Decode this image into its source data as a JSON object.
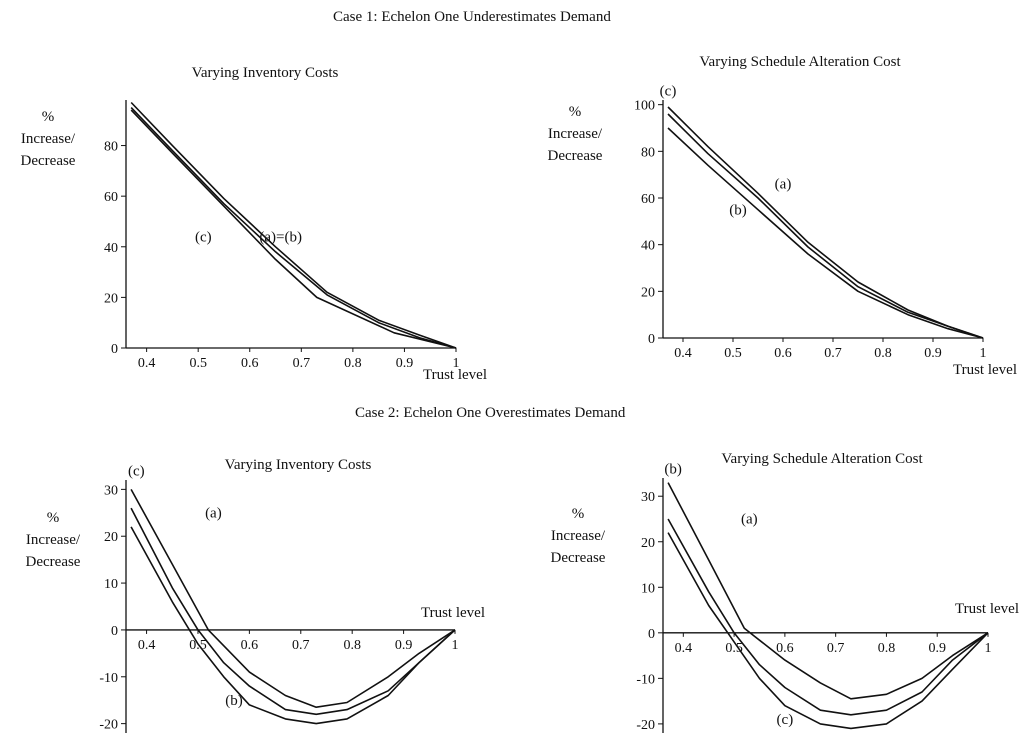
{
  "case1": {
    "title": "Case 1: Echelon One Underestimates Demand"
  },
  "case2": {
    "title": "Case 2: Echelon One Overestimates Demand"
  },
  "chart_data": [
    {
      "id": "c1l",
      "type": "line",
      "title": "Varying Inventory Costs",
      "ylabel": [
        "%",
        "Increase/",
        "Decrease"
      ],
      "xlabel": "Trust level",
      "xlim": [
        0.36,
        1.0
      ],
      "ylim": [
        0,
        98
      ],
      "x_ticks": [
        0.4,
        0.5,
        0.6,
        0.7,
        0.8,
        0.9,
        1
      ],
      "x_tick_labels": [
        "0.4",
        "0.5",
        "0.6",
        "0.7",
        "0.8",
        "0.9",
        "1"
      ],
      "y_ticks": [
        0,
        20,
        40,
        60,
        80
      ],
      "grid": false,
      "series": [
        {
          "label": "(a)=(b)",
          "x": [
            0.37,
            0.45,
            0.55,
            0.65,
            0.75,
            0.85,
            0.93,
            1.0
          ],
          "y": [
            97,
            80,
            59,
            40,
            22,
            11,
            5,
            0
          ]
        },
        {
          "label": "",
          "x": [
            0.37,
            0.45,
            0.55,
            0.65,
            0.75,
            0.85,
            0.93,
            1.0
          ],
          "y": [
            95,
            78,
            57,
            38,
            21,
            10,
            4,
            0
          ]
        },
        {
          "label": "(c)",
          "x": [
            0.37,
            0.45,
            0.55,
            0.65,
            0.73,
            0.88,
            1.0
          ],
          "y": [
            94,
            77,
            56,
            35,
            20,
            6,
            0
          ]
        }
      ],
      "annotations": [
        {
          "text": "(a)=(b)",
          "x": 0.66,
          "y": 42
        },
        {
          "text": "(c)",
          "x": 0.51,
          "y": 42
        }
      ]
    },
    {
      "id": "c1r",
      "type": "line",
      "title": "Varying Schedule Alteration Cost",
      "ylabel": [
        "%",
        "Increase/",
        "Decrease"
      ],
      "xlabel": "Trust level",
      "xlim": [
        0.36,
        1.0
      ],
      "ylim": [
        0,
        102
      ],
      "x_ticks": [
        0.4,
        0.5,
        0.6,
        0.7,
        0.8,
        0.9,
        1
      ],
      "x_tick_labels": [
        "0.4",
        "0.5",
        "0.6",
        "0.7",
        "0.8",
        "0.9",
        "1"
      ],
      "y_ticks": [
        0,
        20,
        40,
        60,
        80,
        100
      ],
      "grid": false,
      "series": [
        {
          "label": "(c)",
          "x": [
            0.37,
            0.45,
            0.55,
            0.65,
            0.75,
            0.85,
            0.93,
            1.0
          ],
          "y": [
            99,
            82,
            62,
            41,
            24,
            12,
            5,
            0
          ]
        },
        {
          "label": "(a)",
          "x": [
            0.37,
            0.45,
            0.55,
            0.65,
            0.75,
            0.85,
            0.93,
            1.0
          ],
          "y": [
            96,
            79,
            60,
            39,
            22,
            11,
            5,
            0
          ]
        },
        {
          "label": "(b)",
          "x": [
            0.37,
            0.45,
            0.55,
            0.65,
            0.75,
            0.85,
            0.93,
            1.0
          ],
          "y": [
            90,
            74,
            55,
            36,
            20,
            10,
            4,
            0
          ]
        }
      ],
      "annotations": [
        {
          "text": "(c)",
          "x": 0.37,
          "y": 104
        },
        {
          "text": "(a)",
          "x": 0.6,
          "y": 64
        },
        {
          "text": "(b)",
          "x": 0.51,
          "y": 53
        }
      ]
    },
    {
      "id": "c2l",
      "type": "line",
      "title": "Varying Inventory Costs",
      "ylabel": [
        "%",
        "Increase/",
        "Decrease"
      ],
      "xlabel": "Trust level",
      "xlim": [
        0.36,
        1.0
      ],
      "ylim": [
        -22,
        32
      ],
      "x_ticks": [
        0.4,
        0.5,
        0.6,
        0.7,
        0.8,
        0.9,
        1
      ],
      "x_tick_labels": [
        "0.4",
        "0.5",
        "0.6",
        "0.7",
        "0.8",
        "0.9",
        "1"
      ],
      "y_ticks": [
        -20,
        -10,
        0,
        10,
        20,
        30
      ],
      "grid": false,
      "series": [
        {
          "label": "(c)",
          "x": [
            0.37,
            0.45,
            0.52,
            0.6,
            0.67,
            0.73,
            0.79,
            0.87,
            0.93,
            1.0
          ],
          "y": [
            30,
            14,
            0,
            -9,
            -14,
            -16.5,
            -15.5,
            -10,
            -5,
            0
          ]
        },
        {
          "label": "(a)",
          "x": [
            0.37,
            0.45,
            0.5,
            0.55,
            0.6,
            0.67,
            0.73,
            0.79,
            0.87,
            0.93,
            1.0
          ],
          "y": [
            26,
            9,
            0,
            -7,
            -12,
            -17,
            -18,
            -17,
            -13,
            -7,
            0
          ]
        },
        {
          "label": "(b)",
          "x": [
            0.37,
            0.45,
            0.5,
            0.55,
            0.6,
            0.67,
            0.73,
            0.79,
            0.87,
            0.93,
            1.0
          ],
          "y": [
            22,
            6,
            -3,
            -10,
            -16,
            -19,
            -20,
            -19,
            -14,
            -7,
            0
          ]
        }
      ],
      "annotations": [
        {
          "text": "(c)",
          "x": 0.38,
          "y": 33
        },
        {
          "text": "(a)",
          "x": 0.53,
          "y": 24
        },
        {
          "text": "(b)",
          "x": 0.57,
          "y": -16
        }
      ]
    },
    {
      "id": "c2r",
      "type": "line",
      "title": "Varying Schedule Alteration Cost",
      "ylabel": [
        "%",
        "Increase/",
        "Decrease"
      ],
      "xlabel": "Trust level",
      "xlim": [
        0.36,
        1.0
      ],
      "ylim": [
        -22,
        34
      ],
      "x_ticks": [
        0.4,
        0.5,
        0.6,
        0.7,
        0.8,
        0.9,
        1
      ],
      "x_tick_labels": [
        "0.4",
        "0.5",
        "0.6",
        "0.7",
        "0.8",
        "0.9",
        "1"
      ],
      "y_ticks": [
        -20,
        -10,
        0,
        10,
        20,
        30
      ],
      "grid": false,
      "series": [
        {
          "label": "(b)",
          "x": [
            0.37,
            0.45,
            0.52,
            0.6,
            0.67,
            0.73,
            0.8,
            0.87,
            0.93,
            1.0
          ],
          "y": [
            33,
            16,
            1,
            -6,
            -11,
            -14.5,
            -13.5,
            -10,
            -5,
            0
          ]
        },
        {
          "label": "(a)",
          "x": [
            0.37,
            0.45,
            0.5,
            0.55,
            0.6,
            0.67,
            0.73,
            0.8,
            0.87,
            0.93,
            1.0
          ],
          "y": [
            25,
            9,
            0,
            -7,
            -12,
            -17,
            -18,
            -17,
            -13,
            -6,
            0
          ]
        },
        {
          "label": "(c)",
          "x": [
            0.37,
            0.45,
            0.5,
            0.55,
            0.6,
            0.67,
            0.73,
            0.8,
            0.87,
            0.93,
            1.0
          ],
          "y": [
            22,
            6,
            -2,
            -10,
            -16,
            -20,
            -21,
            -20,
            -15,
            -8,
            0
          ]
        }
      ],
      "annotations": [
        {
          "text": "(b)",
          "x": 0.38,
          "y": 35
        },
        {
          "text": "(a)",
          "x": 0.53,
          "y": 24
        },
        {
          "text": "(c)",
          "x": 0.6,
          "y": -20
        }
      ]
    }
  ]
}
